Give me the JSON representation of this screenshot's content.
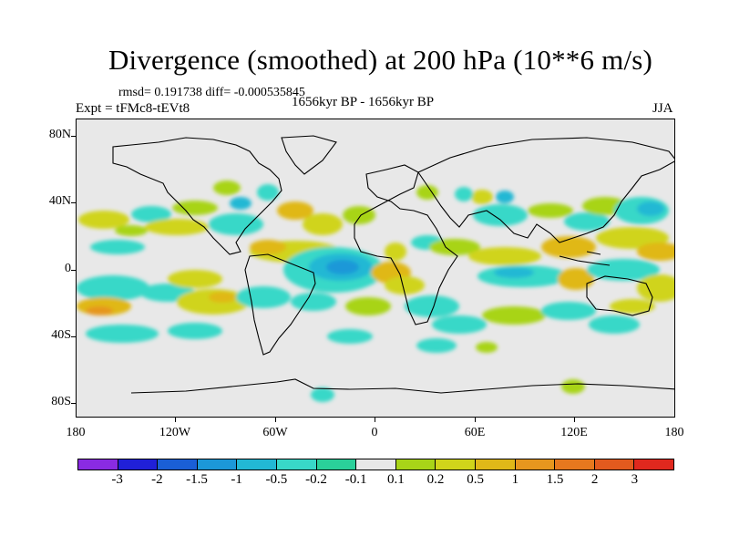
{
  "title": "Divergence (smoothed) at 200 hPa (10**6 m/s)",
  "stats": "rmsd= 0.191738 diff= -0.000535845",
  "experiment": "Expt = tFMc8-tEVt8",
  "period": "1656kyr BP - 1656kyr BP",
  "season": "JJA",
  "y_axis": {
    "ticks": [
      "80N",
      "40N",
      "0",
      "40S",
      "80S"
    ]
  },
  "x_axis": {
    "ticks": [
      "180",
      "120W",
      "60W",
      "0",
      "60E",
      "120E",
      "180"
    ]
  },
  "colorbar": {
    "colors": [
      "#8a2be2",
      "#2020d8",
      "#1a5fd6",
      "#1c98d8",
      "#22b8d4",
      "#38d8c8",
      "#2ad09a",
      "#e8e8e8",
      "#a8d418",
      "#d0d41a",
      "#e0b818",
      "#e6961e",
      "#e6781e",
      "#e25a1e",
      "#e0281e"
    ],
    "labels": [
      "-3",
      "-2",
      "-1.5",
      "-1",
      "-0.5",
      "-0.2",
      "-0.1",
      "0.1",
      "0.2",
      "0.5",
      "1",
      "1.5",
      "2",
      "3"
    ]
  }
}
